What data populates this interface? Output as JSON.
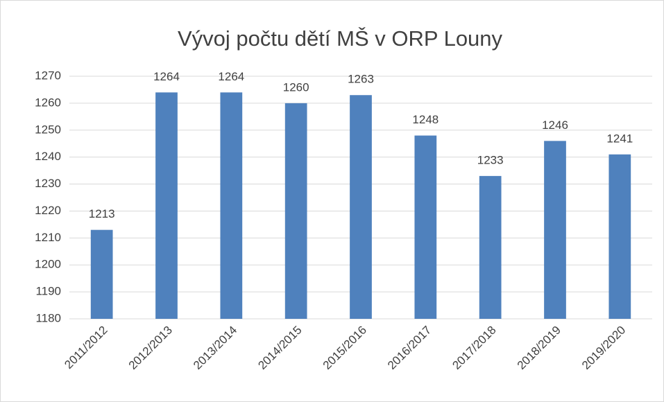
{
  "chart_data": {
    "type": "bar",
    "title": "Vývoj počtu dětí MŠ v ORP Louny",
    "categories": [
      "2011/2012",
      "2012/2013",
      "2013/2014",
      "2014/2015",
      "2015/2016",
      "2016/2017",
      "2017/2018",
      "2018/2019",
      "2019/2020"
    ],
    "values": [
      1213,
      1264,
      1264,
      1260,
      1263,
      1248,
      1233,
      1246,
      1241
    ],
    "color": "#4f81bd",
    "ylim": [
      1180,
      1270
    ],
    "yticks": [
      1180,
      1190,
      1200,
      1210,
      1220,
      1230,
      1240,
      1250,
      1260,
      1270
    ],
    "grid": true
  }
}
